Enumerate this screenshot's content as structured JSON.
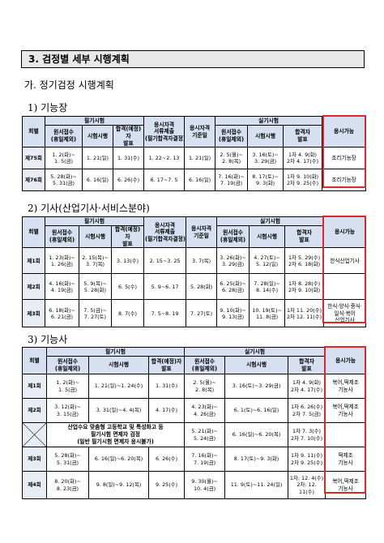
{
  "section_title": "3. 검정별 세부 시행계획",
  "subsection_title": "가. 정기검정 시행계획",
  "headers": {
    "round": "회별",
    "written": "필기시험",
    "application": "원서접수\n(휴일제외)",
    "exam": "시험시행",
    "written_result": "합격(예정)자\n발표",
    "qualification": "응시자격\n서류제출\n(필기합격자결정)",
    "qualification_short": "응시자격\n서류제출\n(필기합격자결정)",
    "qual_date": "응시자격\n기준일",
    "practical": "실기시험",
    "pass_result": "합격자\n발표",
    "available": "응시가능"
  },
  "table1": {
    "title": "1) 기능장",
    "rows": [
      {
        "round": "제75회",
        "app": "1. 2(화)~\n1. 5(금)",
        "exam": "1. 21(일)",
        "result": "1. 31(수)",
        "qual": "1. 22~2. 13",
        "qual_date": "1. 21(일)",
        "p_app": "2. 5(월)~\n2. 8(목)",
        "p_exam": "3. 16(토)~\n3. 29(금)",
        "p_result": "1차 4. 9(화)\n2차 4. 17(수)",
        "available": "조리기능장"
      },
      {
        "round": "제76회",
        "app": "5. 28(화)~\n5. 31(금)",
        "exam": "6. 16(일)",
        "result": "6. 26(수)",
        "qual": "6. 17~7. 5",
        "qual_date": "6. 16(일)",
        "p_app": "7. 16(화)~\n7. 19(금)",
        "p_exam": "8. 17(토)~\n9. 3(화)",
        "p_result": "1차 9. 10(화)\n2차 9. 25(수)",
        "available": "조리기능장"
      }
    ]
  },
  "table2": {
    "title": "2) 기사(산업기사·서비스분야)",
    "rows": [
      {
        "round": "제1회",
        "app": "1. 23(화)~\n1. 26(금)",
        "exam": "2. 15(목)~\n3. 7(목)",
        "result": "3. 13(수)",
        "qual": "2. 15~3. 25",
        "qual_date": "3. 7(목)",
        "p_app": "3. 26(화)~\n3. 29(금)",
        "p_exam": "4. 27(토)~\n5. 12(일)",
        "p_result": "1차 5. 29(수)\n2차 6. 18(화)",
        "available": "한식산업기사"
      },
      {
        "round": "제2회",
        "app": "4. 16(화)~\n4. 19(금)",
        "exam": "5. 9(목)~\n5. 28(화)",
        "result": "6. 5(수)",
        "qual": "5. 9~6. 17",
        "qual_date": "5. 28(화)",
        "p_app": "6. 25(화)~\n6. 28(금)",
        "p_exam": "7. 28(일)~\n8. 14(수)",
        "p_result": "1차 8. 28(수)\n2차 9. 10(화)",
        "available": ""
      },
      {
        "round": "제3회",
        "app": "6. 18(화)~\n6. 21(금)",
        "exam": "7. 5(금)~\n7. 27(토)",
        "result": "8. 7(수)",
        "qual": "7. 5~8. 19",
        "qual_date": "7. 27(토)",
        "p_app": "9. 10(화)~\n9. 13(금)",
        "p_exam": "10. 19(토)~\n11. 8(금)",
        "p_result": "1차 11. 20(수)\n2차 12. 11(수)",
        "available": "한식·양식·중식·일식·복어\n산업기사"
      }
    ]
  },
  "table3": {
    "title": "3) 기능사",
    "rows": [
      {
        "round": "제1회",
        "app": "1. 2(화)~\n1. 5(금)",
        "exam": "1. 21(일)~1. 24(수)",
        "result": "1. 31(수)",
        "p_app": "2. 5(월)~\n2. 8(목)",
        "p_exam": "3. 16(토)~3. 29(금)",
        "p_result": "1차 4. 9(화)\n2차 4. 17(수)",
        "available": "복어,떡제조\n기능사"
      },
      {
        "round": "제2회",
        "app": "3. 12(화)~\n3. 15(금)",
        "exam": "3. 31(일)~4. 4(목)",
        "result": "4. 17(수)",
        "p_app": "4. 23(화)~\n4. 26(금)",
        "p_exam": "6. 1(토)~6. 16(일)",
        "p_result": "1차 6. 26(수)\n2차 7. 5(금)",
        "available": "복어,떡제조\n기능사"
      },
      {
        "round": "",
        "note": "산업수요 맞춤형 고등학교 및 특성화고 등\n필기시험 면제자 검정\n(일반 필기시험 면제자 응시불가)",
        "p_app": "5. 21(화)~\n5. 24(금)",
        "p_exam": "6. 16(일)~6. 20(목)",
        "p_result": "1차 7. 3(수)\n2차 7. 10(수)",
        "available": ""
      },
      {
        "round": "제3회",
        "app": "5. 28(화)~\n5. 31(금)",
        "exam": "6. 16(일)~6. 20(목)",
        "result": "6. 26(수)",
        "p_app": "7. 16(화)~\n7. 19(금)",
        "p_exam": "8. 17(토)~9. 3(화)",
        "p_result": "1차 9. 11(수)\n2차 9. 25(수)",
        "available": "떡제조\n기능사"
      },
      {
        "round": "제4회",
        "app": "8. 20(화)~\n8. 23(금)",
        "exam": "9. 8(일)~9. 12(목)",
        "result": "9. 25(수)",
        "p_app": "9. 30(월)~\n10. 4(금)",
        "p_exam": "11. 9(토)~11. 24(일)",
        "p_result": "1차: 12. 4(수)\n2차: 12. 11(수)",
        "available": "복어,떡제조\n기능사"
      }
    ]
  }
}
